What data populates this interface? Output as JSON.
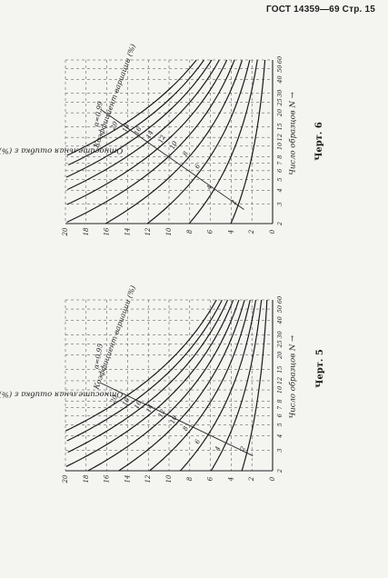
{
  "header": {
    "text": "ГОСТ 14359—69 Стр. 15"
  },
  "charts": [
    {
      "figure_label": "Черт. 5",
      "y_axis_label": "Относительная ошибка ε (%) →",
      "x_axis_label": "Число образцов N →",
      "coef_label": "Коэффициент вариации (%)",
      "alpha_label": "α=0,95",
      "y_ticks": [
        "0",
        "2",
        "4",
        "6",
        "8",
        "10",
        "12",
        "14",
        "16",
        "18",
        "20"
      ],
      "x_ticks": [
        "2",
        "3",
        "4",
        "5",
        "6",
        "7",
        "8",
        "10",
        "12",
        "15",
        "20",
        "25",
        "30",
        "40",
        "50",
        "60"
      ],
      "curve_labels": [
        "2",
        "4",
        "6",
        "8",
        "10",
        "12",
        "14",
        "16",
        "18",
        "20"
      ]
    },
    {
      "figure_label": "Черт. 6",
      "y_axis_label": "Относительная ошибка ε (%) →",
      "x_axis_label": "Число образцов N →",
      "coef_label": "Коэффициент вариации (%)",
      "alpha_label": "α=0,99",
      "y_ticks": [
        "0",
        "2",
        "4",
        "6",
        "8",
        "10",
        "12",
        "14",
        "16",
        "18",
        "20"
      ],
      "x_ticks": [
        "2",
        "3",
        "4",
        "5",
        "6",
        "7",
        "8",
        "10",
        "12",
        "15",
        "20",
        "25",
        "30",
        "40",
        "50",
        "60"
      ],
      "curve_labels": [
        "2",
        "4",
        "6",
        "8",
        "10",
        "12",
        "14",
        "16",
        "18",
        "20"
      ]
    }
  ]
}
